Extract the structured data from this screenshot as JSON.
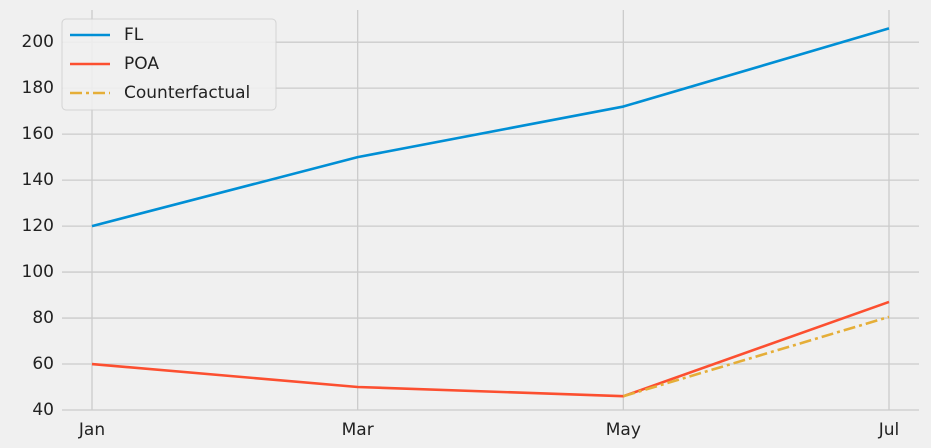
{
  "chart_data": {
    "type": "line",
    "categories": [
      "Jan",
      "Mar",
      "May",
      "Jul"
    ],
    "series": [
      {
        "name": "FL",
        "color": "#008fd5",
        "values": [
          120,
          150,
          172,
          206
        ]
      },
      {
        "name": "POA",
        "color": "#fc4f30",
        "values": [
          60,
          50,
          46,
          87
        ]
      },
      {
        "name": "Counterfactual",
        "color": "#e5ae38",
        "dash": "dashdot",
        "values": [
          null,
          null,
          46,
          80.5
        ]
      }
    ],
    "ylim": [
      40,
      214
    ],
    "yticks": [
      40,
      60,
      80,
      100,
      120,
      140,
      160,
      180,
      200
    ],
    "grid": true,
    "legend": "upper left"
  }
}
